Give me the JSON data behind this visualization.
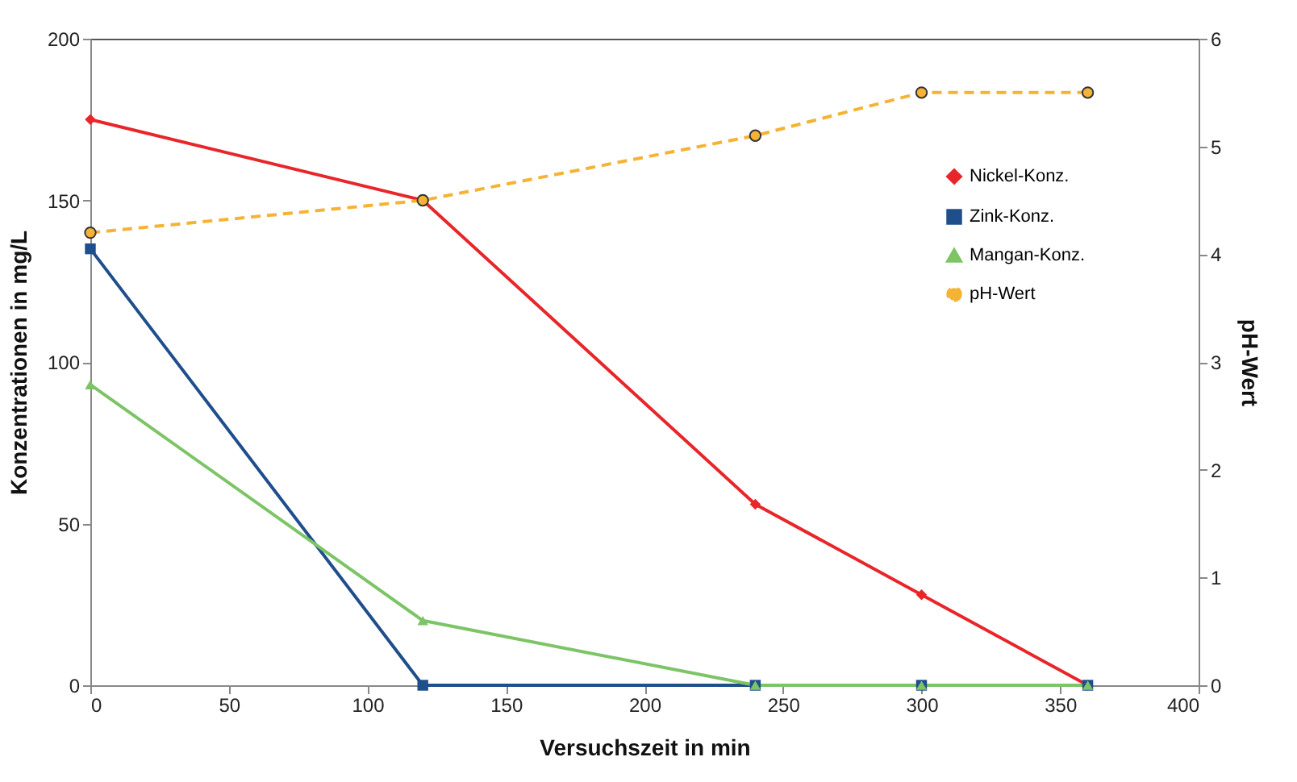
{
  "chart_data": {
    "type": "line",
    "x": [
      0,
      120,
      240,
      300,
      360
    ],
    "xlabel": "Versuchszeit in min",
    "ylabel": "Konzentrationen in mg/L",
    "y2label": "pH-Wert",
    "xlim": [
      0,
      400
    ],
    "xticks": [
      0,
      50,
      100,
      150,
      200,
      250,
      300,
      350,
      400
    ],
    "ylim": [
      0,
      200
    ],
    "yticks": [
      0,
      50,
      100,
      150,
      200
    ],
    "y2lim": [
      0,
      6
    ],
    "y2ticks": [
      0,
      1,
      2,
      3,
      4,
      5,
      6
    ],
    "grid": false,
    "legend": "top right",
    "series": [
      {
        "name": "Nickel-Konz.",
        "color": "#e8262a",
        "marker": "diamond",
        "line_style": "solid",
        "values": [
          175,
          150,
          56,
          28,
          0
        ]
      },
      {
        "name": "Zink-Konz.",
        "color": "#1f4e8c",
        "marker": "square",
        "line_style": "solid",
        "values": [
          135,
          0,
          0,
          0,
          0
        ]
      },
      {
        "name": "Mangan-Konz.",
        "color": "#7cc466",
        "marker": "triangle",
        "line_style": "solid",
        "values": [
          93,
          20,
          0,
          0,
          0
        ]
      },
      {
        "name": "pH-Wert",
        "color": "#f5b335",
        "marker": "circle",
        "line_style": "dashed",
        "axis": "y2",
        "values": [
          4.2,
          4.5,
          5.1,
          5.5,
          5.5
        ]
      }
    ]
  }
}
